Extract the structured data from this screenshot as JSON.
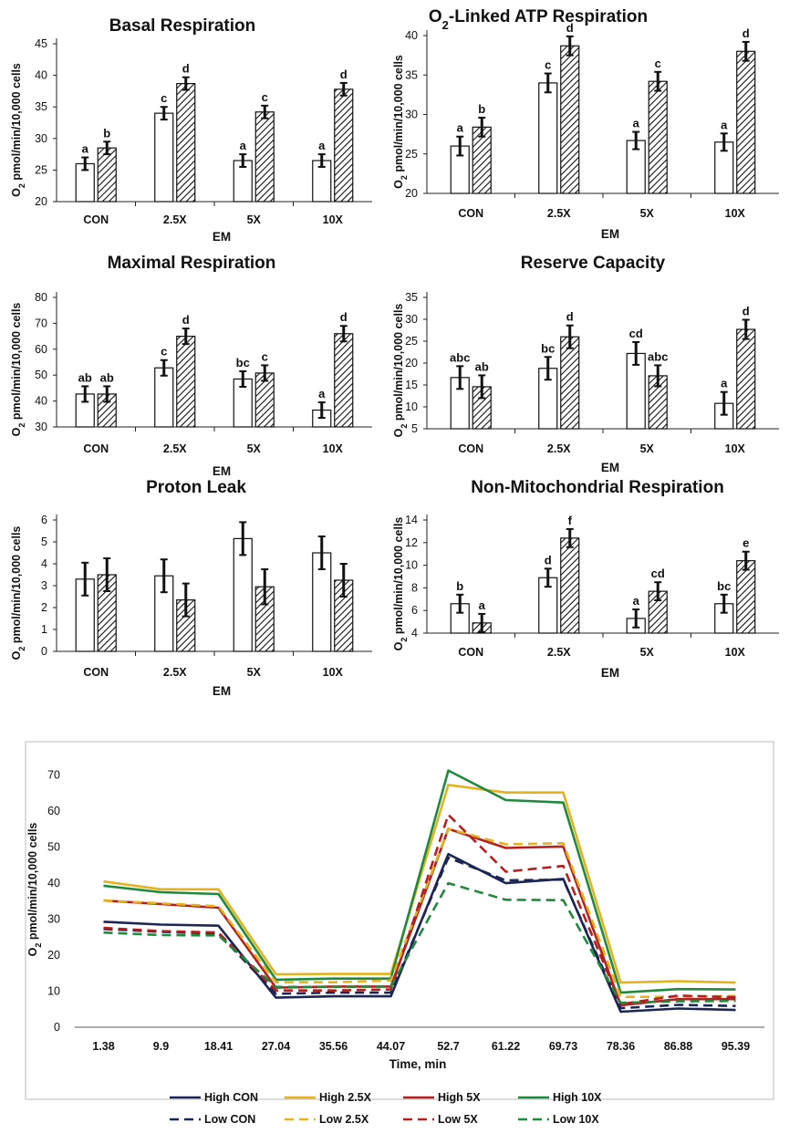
{
  "chart_data": [
    {
      "type": "bar",
      "title": "Basal Respiration",
      "xlabel": "EM",
      "ylabel": "O2 pmol/min/10,000 cells",
      "ylim": [
        20,
        45
      ],
      "yticks": [
        "20",
        "25",
        "30",
        "35",
        "40",
        "45"
      ],
      "categories": [
        "CON",
        "2.5X",
        "5X",
        "10X"
      ],
      "series": [
        {
          "name": "open",
          "values": [
            26,
            34,
            26.5,
            26.5
          ],
          "errors": [
            1,
            1,
            1,
            1
          ],
          "letters": [
            "a",
            "c",
            "a",
            "a"
          ]
        },
        {
          "name": "hatched",
          "values": [
            28.5,
            38.7,
            34.2,
            37.8
          ],
          "errors": [
            1,
            1,
            1,
            1
          ],
          "letters": [
            "b",
            "d",
            "c",
            "d"
          ]
        }
      ]
    },
    {
      "type": "bar",
      "title": "O2-Linked ATP Respiration",
      "title_main": "O",
      "title_sub": "2",
      "title_rest": "-Linked ATP Respiration",
      "xlabel": "EM",
      "ylabel": "O2 pmol/min/10,000 cells",
      "ylim": [
        20,
        40
      ],
      "yticks": [
        "20",
        "25",
        "30",
        "35",
        "40"
      ],
      "categories": [
        "CON",
        "2.5X",
        "5X",
        "10X"
      ],
      "series": [
        {
          "name": "open",
          "values": [
            26,
            34,
            26.7,
            26.5
          ],
          "errors": [
            1.2,
            1.2,
            1.1,
            1.1
          ],
          "letters": [
            "a",
            "c",
            "a",
            "a"
          ]
        },
        {
          "name": "hatched",
          "values": [
            28.4,
            38.7,
            34.2,
            38
          ],
          "errors": [
            1.2,
            1.2,
            1.2,
            1.2
          ],
          "letters": [
            "b",
            "d",
            "c",
            "d"
          ]
        }
      ]
    },
    {
      "type": "bar",
      "title": "Maximal Respiration",
      "xlabel": "EM",
      "ylabel": "O2 pmol/min/10,000 cells",
      "ylim": [
        30,
        80
      ],
      "yticks": [
        "30",
        "40",
        "50",
        "60",
        "70",
        "80"
      ],
      "categories": [
        "CON",
        "2.5X",
        "5X",
        "10X"
      ],
      "series": [
        {
          "name": "open",
          "values": [
            42.7,
            52.8,
            48.5,
            36.5
          ],
          "errors": [
            3,
            3,
            3,
            3
          ],
          "letters": [
            "ab",
            "c",
            "bc",
            "a"
          ]
        },
        {
          "name": "hatched",
          "values": [
            42.7,
            65,
            50.8,
            66
          ],
          "errors": [
            3,
            3,
            3,
            3
          ],
          "letters": [
            "ab",
            "d",
            "c",
            "d"
          ]
        }
      ]
    },
    {
      "type": "bar",
      "title": "Reserve Capacity",
      "xlabel": "EM",
      "ylabel": "O2 pmol/min/10,000 cells",
      "ylim": [
        5,
        35
      ],
      "yticks": [
        "5",
        "10",
        "15",
        "20",
        "25",
        "30",
        "35"
      ],
      "categories": [
        "CON",
        "2.5X",
        "5X",
        "10X"
      ],
      "series": [
        {
          "name": "open",
          "values": [
            16.7,
            18.8,
            22.2,
            10.8
          ],
          "errors": [
            2.6,
            2.6,
            2.6,
            2.6
          ],
          "letters": [
            "abc",
            "bc",
            "cd",
            "a"
          ]
        },
        {
          "name": "hatched",
          "values": [
            14.6,
            26,
            17.1,
            27.7
          ],
          "errors": [
            2.6,
            2.6,
            2.4,
            2.2
          ],
          "letters": [
            "ab",
            "d",
            "abc",
            "d"
          ]
        }
      ]
    },
    {
      "type": "bar",
      "title": "Proton Leak",
      "xlabel": "EM",
      "ylabel": "O2 pmol/min/10,000 cells",
      "ylim": [
        0,
        6
      ],
      "yticks": [
        "0",
        "1",
        "2",
        "3",
        "4",
        "5",
        "6"
      ],
      "categories": [
        "CON",
        "2.5X",
        "5X",
        "10X"
      ],
      "series": [
        {
          "name": "open",
          "values": [
            3.3,
            3.45,
            5.15,
            4.5
          ],
          "errors": [
            0.75,
            0.75,
            0.75,
            0.75
          ],
          "letters": []
        },
        {
          "name": "hatched",
          "values": [
            3.5,
            2.35,
            2.95,
            3.25
          ],
          "errors": [
            0.75,
            0.75,
            0.8,
            0.75
          ],
          "letters": []
        }
      ]
    },
    {
      "type": "bar",
      "title": "Non-Mitochondrial Respiration",
      "xlabel": "EM",
      "ylabel": "O2 pmol/min/10,000 cells",
      "ylim": [
        4,
        14
      ],
      "yticks": [
        "4",
        "6",
        "8",
        "10",
        "12",
        "14"
      ],
      "categories": [
        "CON",
        "2.5X",
        "5X",
        "10X"
      ],
      "series": [
        {
          "name": "open",
          "values": [
            6.6,
            8.9,
            5.3,
            6.6
          ],
          "errors": [
            0.8,
            0.8,
            0.8,
            0.8
          ],
          "letters": [
            "b",
            "d",
            "a",
            "bc"
          ]
        },
        {
          "name": "hatched",
          "values": [
            4.9,
            12.4,
            7.7,
            10.4
          ],
          "errors": [
            0.8,
            0.8,
            0.8,
            0.8
          ],
          "letters": [
            "a",
            "f",
            "cd",
            "e"
          ]
        }
      ]
    },
    {
      "type": "line",
      "title": "",
      "xlabel": "Time, min",
      "ylabel": "O2 pmol/min/10,000 cells",
      "ylim": [
        0,
        75
      ],
      "yticks": [
        "0",
        "10",
        "20",
        "30",
        "40",
        "50",
        "60",
        "70"
      ],
      "x": [
        "1.38",
        "9.9",
        "18.41",
        "27.04",
        "35.56",
        "44.07",
        "52.7",
        "61.22",
        "69.73",
        "78.36",
        "86.88",
        "95.39"
      ],
      "series": [
        {
          "name": "High CON",
          "color": "#1b2654",
          "dash": false,
          "values": [
            29.3,
            28.5,
            28.2,
            8.2,
            8.6,
            8.6,
            48.1,
            40,
            41.2,
            4.3,
            5.2,
            4.8
          ]
        },
        {
          "name": "High 2.5X",
          "color": "#e3b21d",
          "dash": false,
          "values": [
            40.5,
            38.3,
            38.3,
            14.7,
            14.8,
            14.8,
            67.3,
            65.2,
            65.2,
            12.4,
            12.8,
            12.4
          ]
        },
        {
          "name": "High 5X",
          "color": "#b41f1f",
          "dash": false,
          "values": [
            35.2,
            34.2,
            33.2,
            11,
            11.3,
            11.3,
            55.1,
            49.8,
            50.2,
            6.1,
            7.8,
            7.8
          ]
        },
        {
          "name": "High 10X",
          "color": "#1f8a3d",
          "dash": false,
          "values": [
            39.3,
            37.5,
            37,
            13.2,
            13.5,
            13.5,
            71.3,
            63.1,
            62.4,
            9.6,
            10.6,
            10.5
          ]
        },
        {
          "name": "Low CON",
          "color": "#1b2654",
          "dash": true,
          "values": [
            27.3,
            26.5,
            26,
            9.3,
            9.6,
            9.6,
            47.1,
            40.8,
            41,
            5.3,
            6.2,
            5.9
          ]
        },
        {
          "name": "Low 2.5X",
          "color": "#e3b21d",
          "dash": true,
          "values": [
            35.2,
            34.4,
            33.6,
            12.5,
            12.5,
            13,
            55.1,
            50.8,
            51.1,
            8.4,
            8.5,
            8.7
          ]
        },
        {
          "name": "Low 5X",
          "color": "#b41f1f",
          "dash": true,
          "values": [
            27.6,
            26.7,
            26.3,
            10.2,
            10.2,
            10.5,
            59,
            43.2,
            44.8,
            6.4,
            8.8,
            8.3
          ]
        },
        {
          "name": "Low 10X",
          "color": "#1f8a3d",
          "dash": true,
          "values": [
            26.3,
            25.6,
            25.5,
            11.2,
            11.2,
            11.3,
            40,
            35.4,
            35.3,
            6.8,
            7.2,
            7.3
          ]
        }
      ],
      "legend_position": "bottom"
    }
  ]
}
